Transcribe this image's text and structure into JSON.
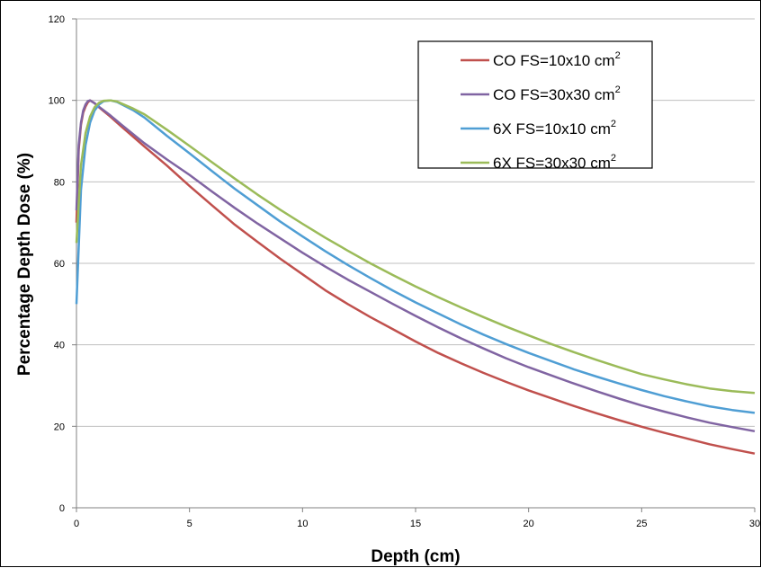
{
  "chart_data": {
    "type": "line",
    "title": "",
    "xlabel": "Depth (cm)",
    "ylabel": "Percentage Depth Dose (%)",
    "xlim": [
      0,
      30
    ],
    "ylim": [
      0,
      120
    ],
    "xticks": [
      0,
      5,
      10,
      15,
      20,
      25,
      30
    ],
    "yticks": [
      0,
      20,
      40,
      60,
      80,
      100,
      120
    ],
    "grid": "horizontal",
    "legend_position": "top-right",
    "series": [
      {
        "name": "CO FS=10x10 cm",
        "name_sup": "2",
        "color": "#c0504d",
        "x": [
          0,
          0.1,
          0.2,
          0.3,
          0.4,
          0.5,
          0.6,
          0.8,
          1,
          1.5,
          2,
          3,
          4,
          5,
          6,
          7,
          8,
          9,
          10,
          11,
          12,
          13,
          14,
          15,
          16,
          17,
          18,
          19,
          20,
          21,
          22,
          23,
          24,
          25,
          26,
          27,
          28,
          29,
          30
        ],
        "y": [
          70,
          88,
          94,
          97,
          98.5,
          99.5,
          100,
          99.3,
          98.3,
          96,
          93.5,
          88.7,
          84,
          79,
          74.2,
          69.5,
          65.3,
          61.2,
          57.3,
          53.4,
          50,
          46.8,
          43.8,
          40.8,
          38,
          35.5,
          33.1,
          30.9,
          28.8,
          26.9,
          25,
          23.2,
          21.5,
          19.9,
          18.4,
          17,
          15.6,
          14.4,
          13.3
        ]
      },
      {
        "name": "CO FS=30x30 cm",
        "name_sup": "2",
        "color": "#8064a2",
        "x": [
          0,
          0.1,
          0.2,
          0.3,
          0.4,
          0.5,
          0.6,
          0.8,
          1,
          1.5,
          2,
          3,
          4,
          5,
          6,
          7,
          8,
          9,
          10,
          11,
          12,
          13,
          14,
          15,
          16,
          17,
          18,
          19,
          20,
          21,
          22,
          23,
          24,
          25,
          26,
          27,
          28,
          29,
          30
        ],
        "y": [
          73,
          89,
          94.5,
          97.5,
          99,
          99.8,
          100,
          99.3,
          98.4,
          96.3,
          94,
          89.5,
          85.5,
          81.7,
          77.6,
          73.6,
          69.8,
          66.2,
          62.6,
          59.2,
          56,
          53,
          50,
          47.1,
          44.3,
          41.6,
          39.1,
          36.7,
          34.5,
          32.5,
          30.5,
          28.6,
          26.8,
          25.1,
          23.6,
          22.2,
          20.9,
          19.8,
          18.8
        ]
      },
      {
        "name": "6X FS=10x10 cm",
        "name_sup": "2",
        "color": "#4f9ed4",
        "x": [
          0,
          0.2,
          0.4,
          0.6,
          0.8,
          1,
          1.2,
          1.5,
          1.8,
          2,
          2.5,
          3,
          4,
          5,
          6,
          7,
          8,
          9,
          10,
          11,
          12,
          13,
          14,
          15,
          16,
          17,
          18,
          19,
          20,
          21,
          22,
          23,
          24,
          25,
          26,
          27,
          28,
          29,
          30
        ],
        "y": [
          50,
          78,
          89,
          94.5,
          97.5,
          99,
          99.8,
          100,
          99.6,
          99,
          97.6,
          95.8,
          91.3,
          87,
          82.6,
          78.3,
          74.3,
          70.3,
          66.6,
          63,
          59.6,
          56.4,
          53.3,
          50.4,
          47.7,
          45,
          42.5,
          40.2,
          38,
          36,
          34,
          32.2,
          30.5,
          28.9,
          27.4,
          26.1,
          24.9,
          24,
          23.3
        ]
      },
      {
        "name": "6X FS=30x30 cm",
        "name_sup": "2",
        "color": "#9bbb59",
        "x": [
          0,
          0.2,
          0.4,
          0.6,
          0.8,
          1,
          1.2,
          1.5,
          1.8,
          2,
          2.5,
          3,
          4,
          5,
          6,
          7,
          8,
          9,
          10,
          11,
          12,
          13,
          14,
          15,
          16,
          17,
          18,
          19,
          20,
          21,
          22,
          23,
          24,
          25,
          26,
          27,
          28,
          29,
          30
        ],
        "y": [
          65,
          84,
          92,
          96,
          98.3,
          99.4,
          99.9,
          100,
          99.7,
          99.2,
          98,
          96.6,
          92.8,
          88.8,
          84.8,
          80.8,
          76.9,
          73.2,
          69.7,
          66.3,
          63.1,
          60,
          57.1,
          54.3,
          51.7,
          49.2,
          46.8,
          44.5,
          42.3,
          40.2,
          38.2,
          36.3,
          34.5,
          32.8,
          31.5,
          30.3,
          29.3,
          28.6,
          28.2
        ]
      }
    ]
  }
}
